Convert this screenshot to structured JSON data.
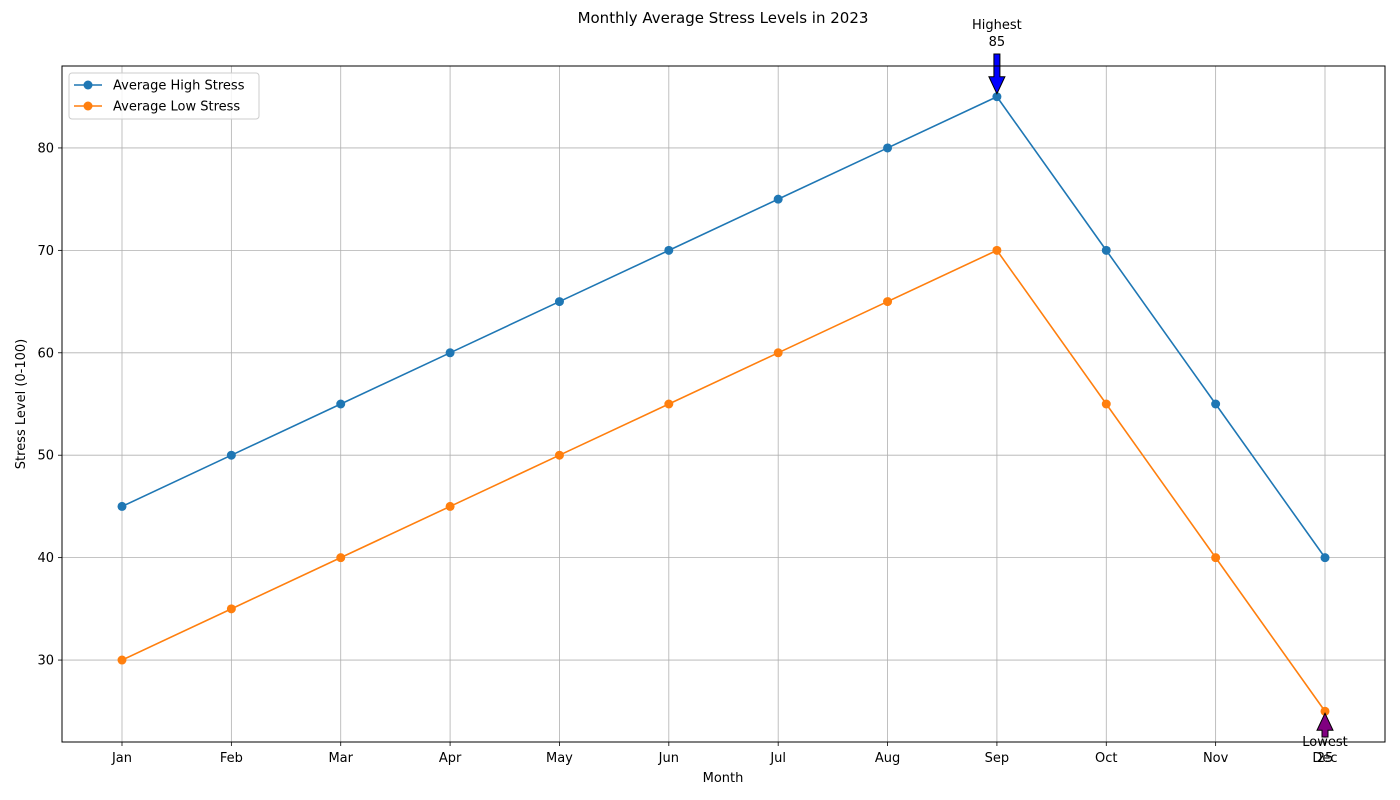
{
  "chart_data": {
    "type": "line",
    "title": "Monthly Average Stress Levels in 2023",
    "xlabel": "Month",
    "ylabel": "Stress Level (0-100)",
    "categories": [
      "Jan",
      "Feb",
      "Mar",
      "Apr",
      "May",
      "Jun",
      "Jul",
      "Aug",
      "Sep",
      "Oct",
      "Nov",
      "Dec"
    ],
    "ylim": [
      22,
      88
    ],
    "yticks": [
      30,
      40,
      50,
      60,
      70,
      80
    ],
    "grid": true,
    "legend_position": "top-left",
    "series": [
      {
        "name": "Average High Stress",
        "color": "#1f77b4",
        "values": [
          45,
          50,
          55,
          60,
          65,
          70,
          75,
          80,
          85,
          70,
          55,
          40
        ]
      },
      {
        "name": "Average Low Stress",
        "color": "#ff7f0e",
        "values": [
          30,
          35,
          40,
          45,
          50,
          55,
          60,
          65,
          70,
          55,
          40,
          25
        ]
      }
    ],
    "annotations": [
      {
        "label": "Highest",
        "value_text": "85",
        "x": "Sep",
        "y": 85,
        "arrow_color": "#0000ff",
        "direction": "down"
      },
      {
        "label": "Lowest",
        "value_text": "25",
        "x": "Dec",
        "y": 25,
        "arrow_color": "#800080",
        "direction": "up"
      }
    ]
  }
}
